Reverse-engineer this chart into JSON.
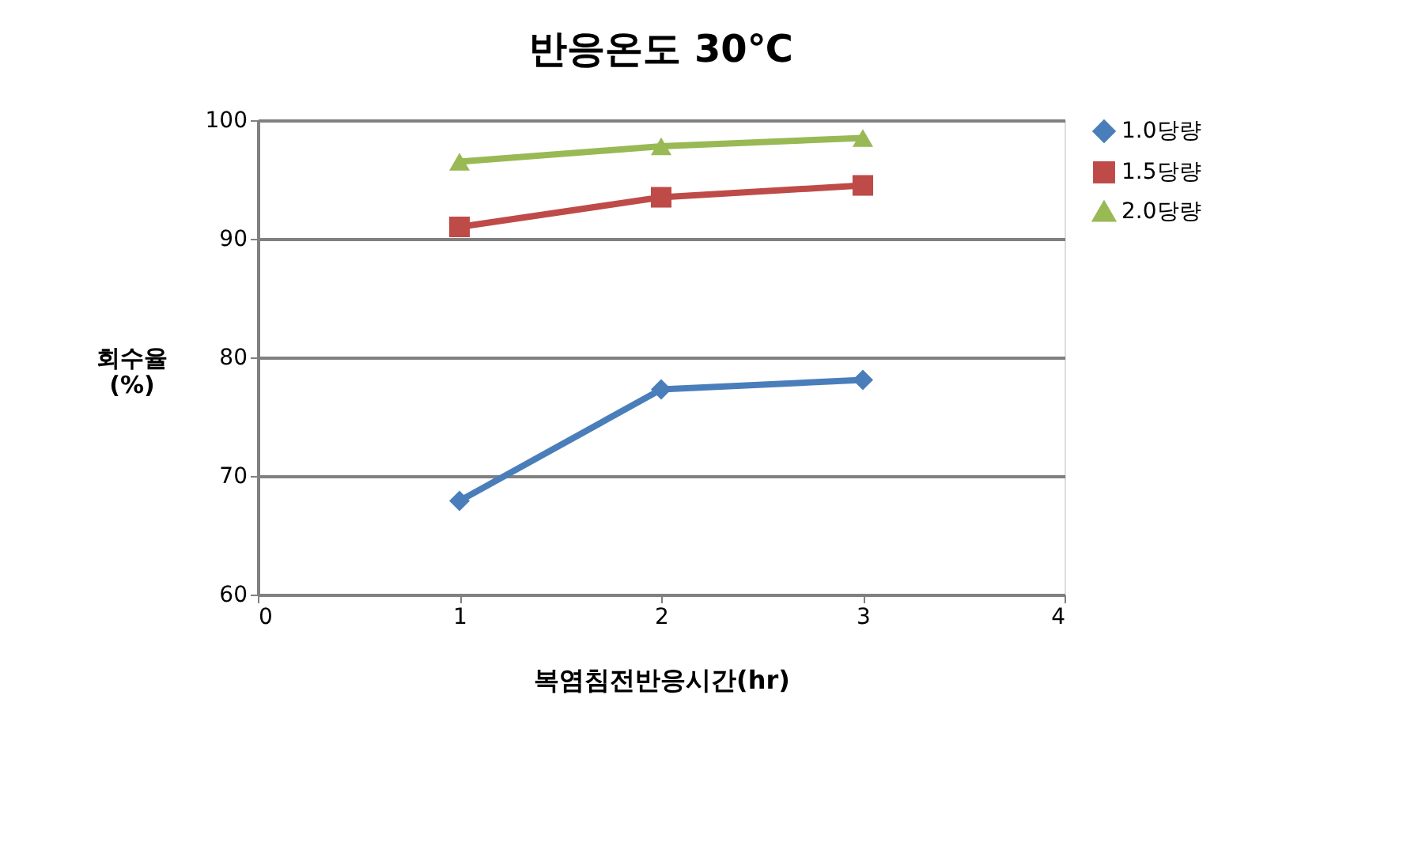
{
  "chart_data": {
    "type": "line",
    "title": "반응온도 30℃",
    "xlabel": "복염침전반응시간(hr)",
    "ylabel": "회수율\n(%)",
    "x": [
      1,
      2,
      3
    ],
    "series": [
      {
        "name": "1.0당량",
        "color": "#4a7ebb",
        "marker": "diamond",
        "values": [
          67.9,
          77.3,
          78.1
        ]
      },
      {
        "name": "1.5당량",
        "color": "#be4b48",
        "marker": "square",
        "values": [
          91.0,
          93.5,
          94.5
        ]
      },
      {
        "name": "2.0당량",
        "color": "#98b954",
        "marker": "triangle",
        "values": [
          96.5,
          97.8,
          98.5
        ]
      }
    ],
    "xlim": [
      0,
      4
    ],
    "xticks": [
      0,
      1,
      2,
      3,
      4
    ],
    "ylim": [
      60,
      100
    ],
    "yticks": [
      60,
      70,
      80,
      90,
      100
    ],
    "grid": "y",
    "legend": "right",
    "line_style": "solid"
  }
}
